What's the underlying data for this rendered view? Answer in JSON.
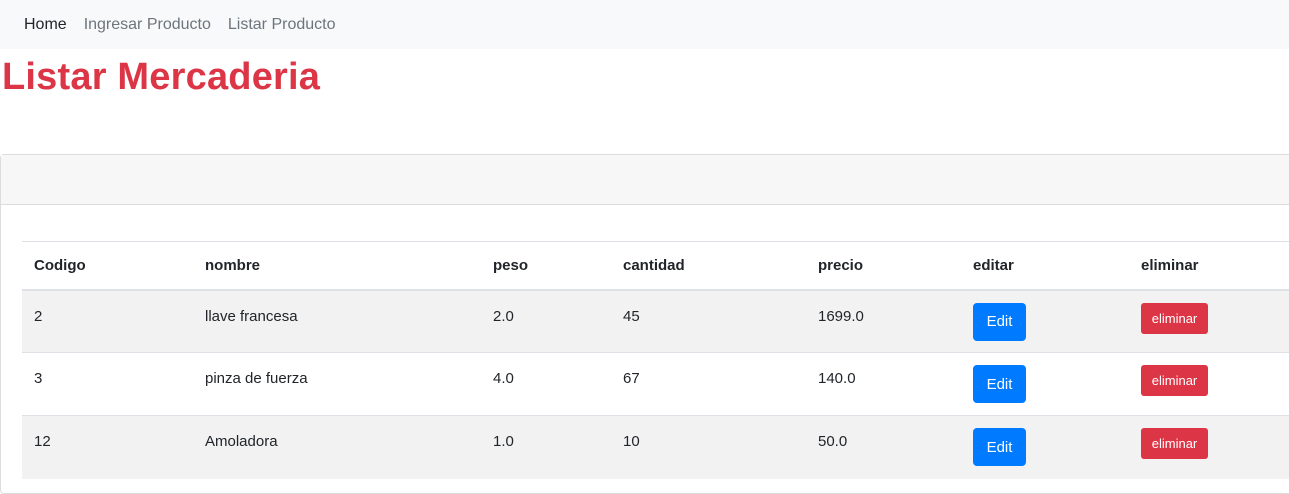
{
  "nav": {
    "items": [
      {
        "label": "Home",
        "active": true
      },
      {
        "label": "Ingresar Producto",
        "active": false
      },
      {
        "label": "Listar Producto",
        "active": false
      }
    ]
  },
  "page": {
    "title": "Listar Mercaderia"
  },
  "table": {
    "headers": [
      "Codigo",
      "nombre",
      "peso",
      "cantidad",
      "precio",
      "editar",
      "eliminar"
    ],
    "rows": [
      {
        "codigo": "2",
        "nombre": "llave francesa",
        "peso": "2.0",
        "cantidad": "45",
        "precio": "1699.0",
        "edit_label": "Edit",
        "delete_label": "eliminar"
      },
      {
        "codigo": "3",
        "nombre": "pinza de fuerza",
        "peso": "4.0",
        "cantidad": "67",
        "precio": "140.0",
        "edit_label": "Edit",
        "delete_label": "eliminar"
      },
      {
        "codigo": "12",
        "nombre": "Amoladora",
        "peso": "1.0",
        "cantidad": "10",
        "precio": "50.0",
        "edit_label": "Edit",
        "delete_label": "eliminar"
      }
    ]
  },
  "colors": {
    "title": "#dc3545",
    "edit_button": "#007bff",
    "delete_button": "#dc3545",
    "navbar_bg": "#f8f9fa"
  }
}
